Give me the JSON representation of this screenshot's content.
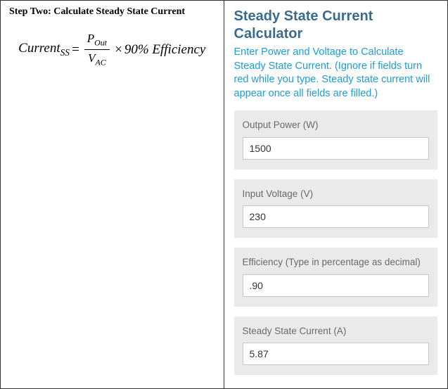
{
  "left": {
    "step_title": "Step Two: Calculate Steady State Current",
    "formula": {
      "lhs_main": "Current",
      "lhs_sub": "SS",
      "eq": "=",
      "num_main": "P",
      "num_sub": "Out",
      "den_main": "V",
      "den_sub": "AC",
      "times": "×",
      "rhs": "90% Efficiency"
    }
  },
  "right": {
    "title": "Steady State Current Calculator",
    "description": "Enter Power and Voltage to Calculate Steady State Current. (Ignore if fields turn red while you type. Steady state current will appear once all fields are filled.)",
    "fields": {
      "output_power": {
        "label": "Output Power (W)",
        "value": "1500"
      },
      "input_voltage": {
        "label": "Input Voltage (V)",
        "value": "230"
      },
      "efficiency": {
        "label": "Efficiency (Type in percentage as decimal)",
        "value": ".90"
      },
      "steady_state_current": {
        "label": "Steady State Current (A)",
        "value": "5.87"
      }
    }
  },
  "colors": {
    "title_color": "#3a6a8e",
    "desc_color": "#1c9dd8",
    "field_bg": "#eaeaea",
    "field_label": "#6a6a6a",
    "border": "#333333"
  }
}
